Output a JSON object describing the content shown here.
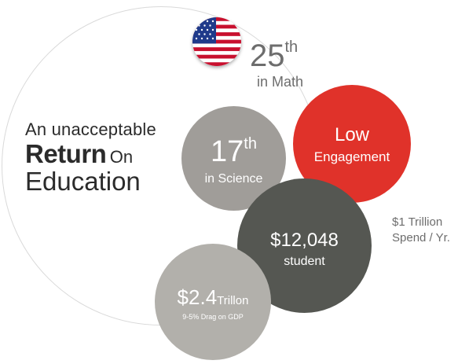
{
  "headline": {
    "line1": "An unacceptable",
    "bold": "Return",
    "thin": "On",
    "line3": "Education"
  },
  "math": {
    "rank_number": "25",
    "rank_suffix": "th",
    "label": "in Math"
  },
  "science": {
    "rank_number": "17",
    "rank_suffix": "th",
    "label": "in Science"
  },
  "engagement": {
    "line1": "Low",
    "line2": "Engagement"
  },
  "student": {
    "amount": "$12,048",
    "label": "student"
  },
  "gdp": {
    "amount": "$2.4",
    "unit": "Trillon",
    "label": "9-5% Drag on GDP"
  },
  "spend": {
    "line1": "$1 Trillion",
    "line2": "Spend / Yr."
  },
  "icons": {
    "flag": "us-flag-icon"
  },
  "colors": {
    "red": "#e0322a",
    "dark_gray": "#555752",
    "mid_gray": "#a09d99",
    "light_gray": "#b2b0ab",
    "text_gray": "#6d6d6d"
  }
}
